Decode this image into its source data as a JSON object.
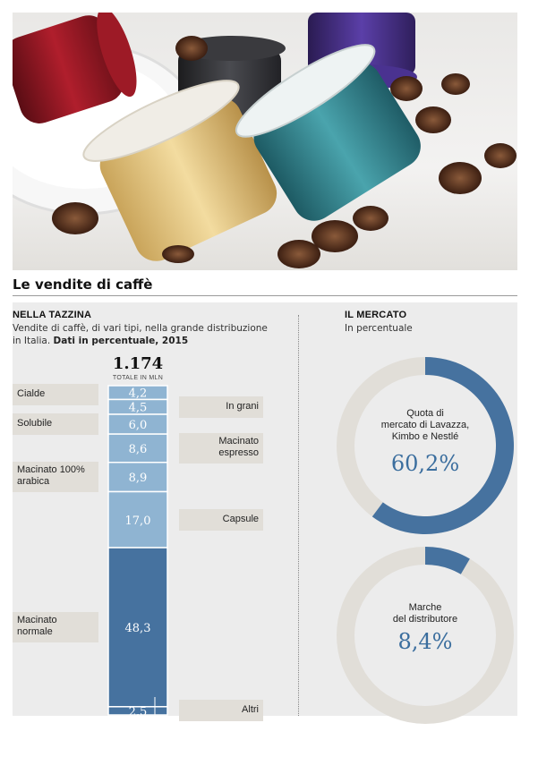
{
  "headline": "Le vendite di caffè",
  "left_section": {
    "title": "NELLA TAZZINA",
    "description_line1": "Vendite di caffè, di vari tipi, nella grande distribuzione",
    "description_line2_plain": "in Italia. ",
    "description_line2_bold": "Dati in percentuale, 2015",
    "total_value": "1.174",
    "total_label": "TOTALE IN MLN"
  },
  "right_section": {
    "title": "IL MERCATO",
    "subtitle": "In percentuale"
  },
  "colors": {
    "light_blue": "#8fb4d2",
    "dark_blue": "#46729f",
    "donut_gray": "#e1ded8",
    "label_bg": "#e1ded8",
    "panel_bg": "#ececec"
  },
  "chart_data": [
    {
      "type": "bar",
      "stacked": true,
      "categories": [
        "Cialde",
        "In grani",
        "Solubile",
        "Macinato espresso",
        "Macinato 100% arabica",
        "Capsule",
        "Macinato normale",
        "Altri"
      ],
      "values": [
        4.2,
        4.5,
        6.0,
        8.6,
        8.9,
        17.0,
        48.3,
        2.5
      ],
      "value_labels": [
        "4,2",
        "4,5",
        "6,0",
        "8,6",
        "8,9",
        "17,0",
        "48,3",
        "2,5"
      ],
      "label_lines": [
        [
          "Cialde"
        ],
        [
          "In grani"
        ],
        [
          "Solubile"
        ],
        [
          "Macinato",
          "espresso"
        ],
        [
          "Macinato 100%",
          "arabica"
        ],
        [
          "Capsule"
        ],
        [
          "Macinato",
          "normale"
        ],
        [
          "Altri"
        ]
      ],
      "label_side": [
        "left",
        "right",
        "left",
        "right",
        "left",
        "right",
        "left",
        "right"
      ],
      "segment_colors": [
        "light_blue",
        "light_blue",
        "light_blue",
        "light_blue",
        "light_blue",
        "light_blue",
        "dark_blue",
        "dark_blue"
      ],
      "ylim": [
        0,
        100
      ]
    },
    {
      "type": "pie",
      "donut": true,
      "label_lines": [
        "Quota di",
        "mercato di Lavazza,",
        "Kimbo  e Nestlé"
      ],
      "value": 60.2,
      "value_label": "60,2%"
    },
    {
      "type": "pie",
      "donut": true,
      "label_lines": [
        "Marche",
        "del distributore"
      ],
      "value": 8.4,
      "value_label": "8,4%"
    }
  ]
}
